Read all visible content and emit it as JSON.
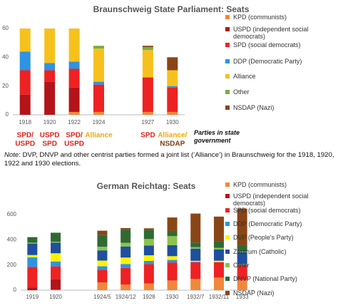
{
  "chart_data": [
    {
      "type": "stacked_bar",
      "title": "Braunschweig State Parliament: Seats",
      "categories": [
        "1918",
        "1920",
        "1922",
        "1924",
        null,
        "1927",
        "1930"
      ],
      "ylim": [
        0,
        60
      ],
      "yticks": [
        0,
        20,
        40,
        60
      ],
      "grid": false,
      "series": [
        {
          "name": "KPD (communists)",
          "color": "#f0883a",
          "values": [
            0,
            0,
            2,
            2,
            null,
            2,
            2
          ]
        },
        {
          "name": "USPD (independent social democrats)",
          "color": "#b3141a",
          "values": [
            14,
            23,
            17,
            0,
            null,
            0,
            0
          ]
        },
        {
          "name": "SPD (social democrats)",
          "color": "#ee2222",
          "values": [
            17,
            8,
            13,
            19,
            null,
            24,
            17
          ]
        },
        {
          "name": "DDP  (Democratic Party)",
          "color": "#2e93e0",
          "values": [
            13,
            5,
            5,
            2,
            null,
            0,
            1
          ]
        },
        {
          "name": "Alliance",
          "color": "#f7c11d",
          "values": [
            16,
            24,
            23,
            23,
            null,
            19,
            11
          ]
        },
        {
          "name": "Other",
          "color": "#74b03e",
          "values": [
            0,
            0,
            0,
            2,
            null,
            2,
            0
          ]
        },
        {
          "name": "NSDAP (Nazi)",
          "color": "#8a4516",
          "values": [
            0,
            0,
            0,
            0,
            null,
            1,
            9
          ]
        }
      ],
      "government_labels": [
        {
          "lines": [
            "SPD/",
            "USPD"
          ],
          "colors": [
            "#e3201b",
            "#e3201b"
          ]
        },
        {
          "lines": [
            "USPD",
            "SPD"
          ],
          "colors": [
            "#e3201b",
            "#e3201b"
          ]
        },
        {
          "lines": [
            "SPD/",
            "USPD"
          ],
          "colors": [
            "#e3201b",
            "#e3201b"
          ]
        },
        {
          "lines": [
            "Alliance"
          ],
          "colors": [
            "#f2a900"
          ]
        },
        null,
        {
          "lines": [
            "SPD"
          ],
          "colors": [
            "#e3201b"
          ]
        },
        {
          "lines": [
            "Alliance/",
            "NSDAP"
          ],
          "colors": [
            "#f2a900",
            "#7a3d12"
          ]
        }
      ],
      "government_title": "Parties in state government"
    },
    {
      "type": "stacked_bar",
      "title": "German Reichtag: Seats",
      "categories": [
        "1919",
        "1920",
        null,
        "1924/5",
        "1924/12",
        "1928",
        "1930",
        "1932/7",
        "1932/11",
        "1933"
      ],
      "ylim": [
        0,
        700
      ],
      "yticks": [
        0,
        200,
        400,
        600
      ],
      "grid": false,
      "series": [
        {
          "name": "KPD (communists)",
          "color": "#f0883a",
          "values": [
            0,
            4,
            null,
            62,
            45,
            54,
            77,
            89,
            100,
            81
          ]
        },
        {
          "name": "USPD (independent social democrats)",
          "color": "#b3141a",
          "values": [
            22,
            83,
            null,
            0,
            0,
            0,
            0,
            0,
            0,
            0
          ]
        },
        {
          "name": "SPD (social democrats)",
          "color": "#ee2222",
          "values": [
            163,
            102,
            null,
            100,
            131,
            153,
            143,
            133,
            121,
            120
          ]
        },
        {
          "name": "DDP (Democratic Party)",
          "color": "#2e93e0",
          "values": [
            75,
            39,
            null,
            28,
            32,
            25,
            20,
            4,
            2,
            5
          ]
        },
        {
          "name": "DVP (People's Party)",
          "color": "#fff200",
          "values": [
            19,
            65,
            null,
            45,
            51,
            45,
            30,
            7,
            11,
            2
          ]
        },
        {
          "name": "Zentrum (Catholic)",
          "color": "#1f4f9e",
          "values": [
            91,
            85,
            null,
            81,
            88,
            78,
            87,
            97,
            90,
            92
          ]
        },
        {
          "name": "Other",
          "color": "#8cc34c",
          "values": [
            7,
            7,
            null,
            29,
            29,
            51,
            72,
            11,
            12,
            7
          ]
        },
        {
          "name": "DNVP (National Party)",
          "color": "#2f6a33",
          "values": [
            44,
            71,
            null,
            95,
            103,
            73,
            41,
            37,
            52,
            52
          ]
        },
        {
          "name": "NSDAP (Nazi)",
          "color": "#8a4516",
          "values": [
            0,
            0,
            null,
            32,
            14,
            12,
            107,
            230,
            196,
            288
          ]
        }
      ]
    }
  ],
  "note": {
    "label": "Note",
    "text": ": DVP, DNVP and other centrist parties formed a joint list (‘Alliance’) in Braunschweig for the 1918, 1920, 1922 and 1930 elections."
  }
}
